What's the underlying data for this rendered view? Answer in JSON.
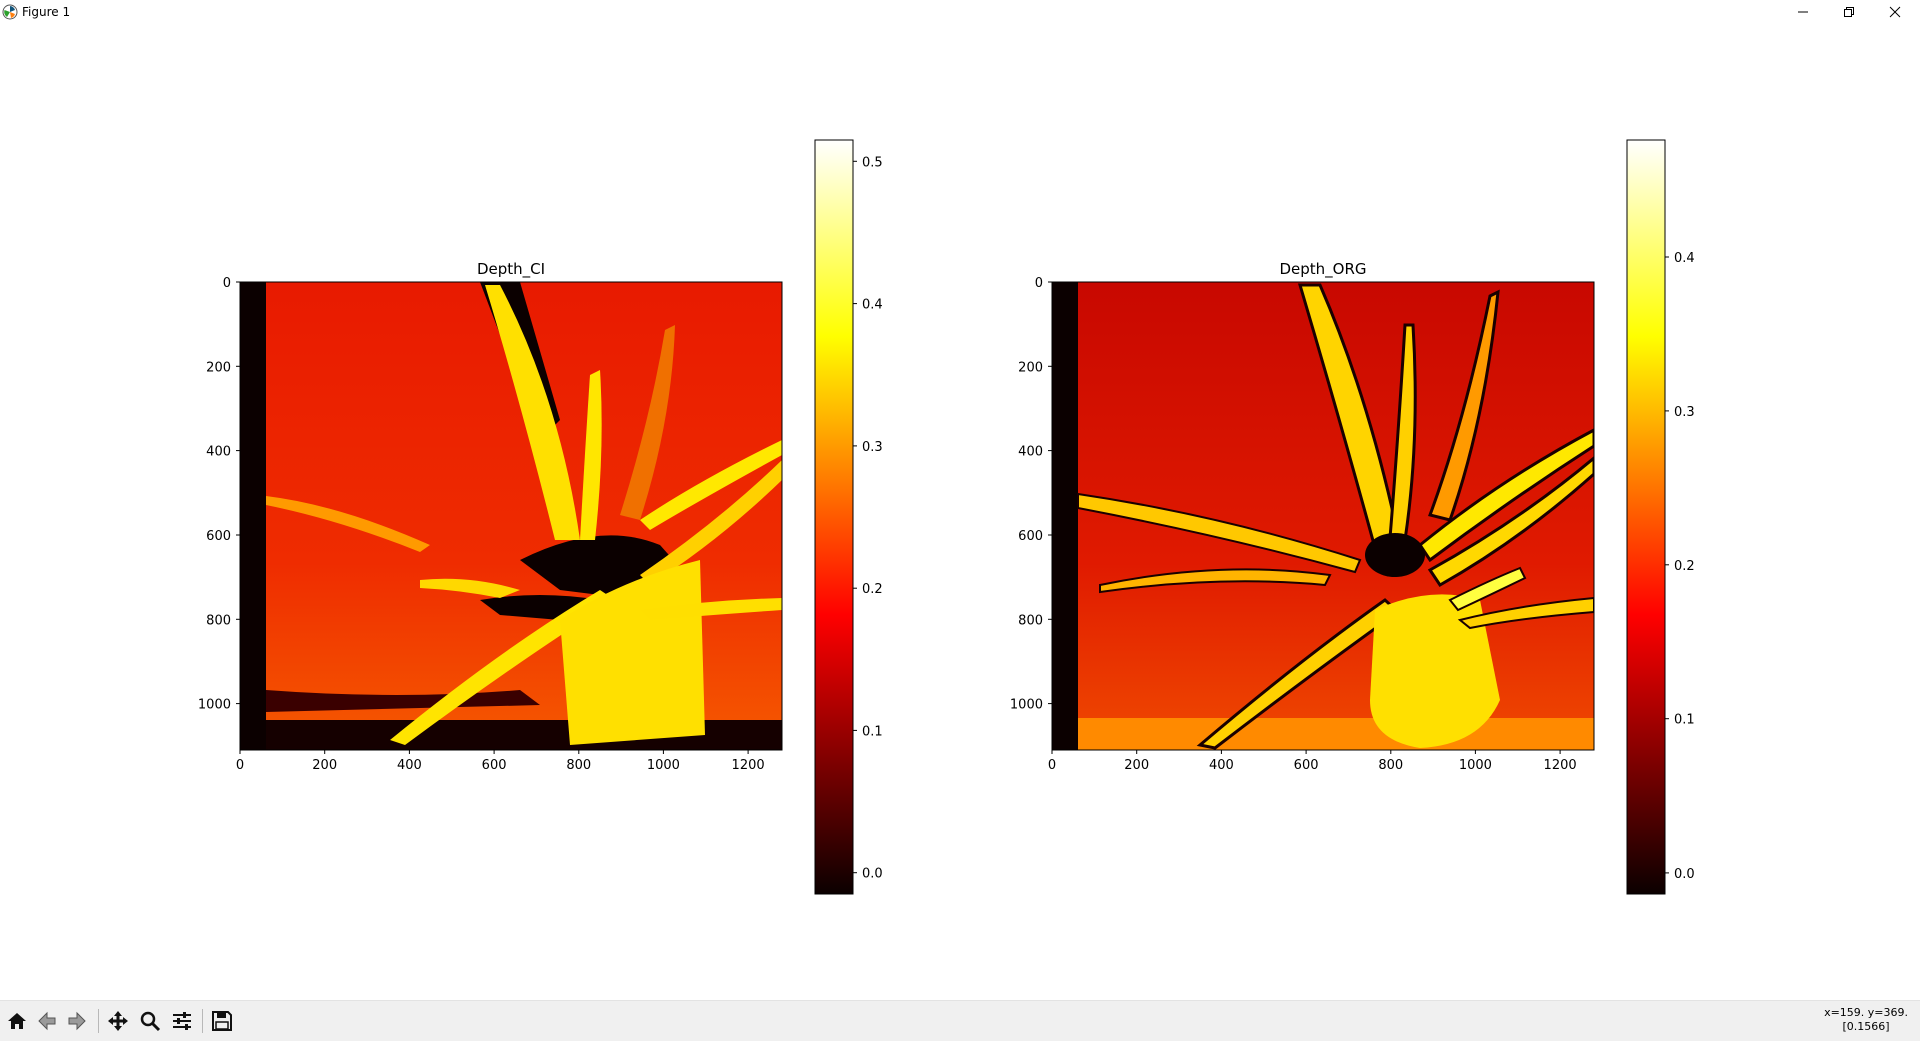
{
  "window": {
    "title": "Figure 1",
    "icons": [
      "matplotlib-logo-icon",
      "minimize-icon",
      "restore-icon",
      "close-icon"
    ]
  },
  "toolbar": {
    "buttons": [
      "home-icon",
      "back-arrow-icon",
      "forward-arrow-icon",
      "pan-move-icon",
      "zoom-magnifier-icon",
      "configure-subplots-icon",
      "save-floppy-icon"
    ],
    "coords_line1": "x=159. y=369.",
    "coords_line2": "[0.1566]"
  },
  "chart_data": [
    {
      "type": "heatmap",
      "title": "Depth_CI",
      "colormap": "hot",
      "x_ticks": [
        "0",
        "200",
        "400",
        "600",
        "800",
        "1000",
        "1200"
      ],
      "y_ticks": [
        "0",
        "200",
        "400",
        "600",
        "800",
        "1000"
      ],
      "xlim": [
        0,
        1280
      ],
      "ylim": [
        1110,
        0
      ],
      "colorbar": {
        "ticks": [
          "0.0",
          "0.1",
          "0.2",
          "0.3",
          "0.4",
          "0.5"
        ],
        "range": [
          -0.015,
          0.515
        ]
      }
    },
    {
      "type": "heatmap",
      "title": "Depth_ORG",
      "colormap": "hot",
      "x_ticks": [
        "0",
        "200",
        "400",
        "600",
        "800",
        "1000",
        "1200"
      ],
      "y_ticks": [
        "0",
        "200",
        "400",
        "600",
        "800",
        "1000"
      ],
      "xlim": [
        0,
        1280
      ],
      "ylim": [
        1110,
        0
      ],
      "colorbar": {
        "ticks": [
          "0.0",
          "0.1",
          "0.2",
          "0.3",
          "0.4"
        ],
        "range": [
          -0.015,
          0.475
        ]
      }
    }
  ]
}
